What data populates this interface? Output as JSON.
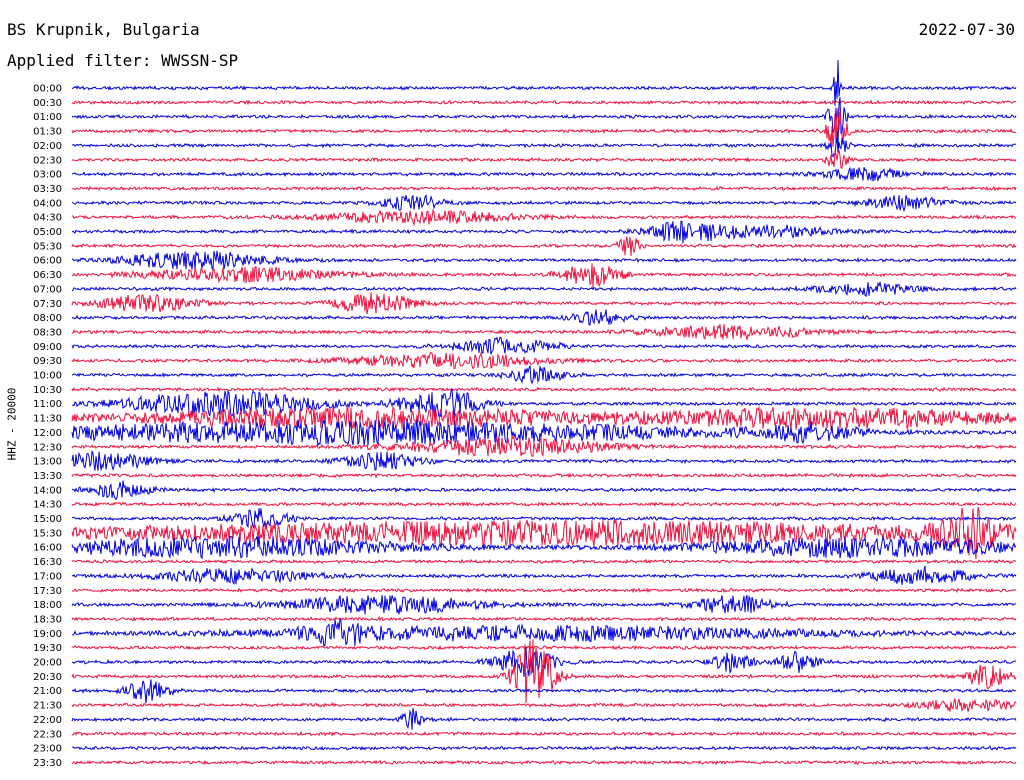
{
  "header": {
    "station": "BS Krupnik, Bulgaria",
    "date": "2022-07-30",
    "filter": "Applied filter: WWSSN-SP"
  },
  "chart_data": {
    "type": "line",
    "title": "BS Krupnik, Bulgaria",
    "ylabel": "HHZ - 20000",
    "colors": {
      "even": "#0000e0",
      "odd": "#f0103c"
    },
    "grid": false,
    "time_labels": [
      "00:00",
      "00:30",
      "01:00",
      "01:30",
      "02:00",
      "02:30",
      "03:00",
      "03:30",
      "04:00",
      "04:30",
      "05:00",
      "05:30",
      "06:00",
      "06:30",
      "07:00",
      "07:30",
      "08:00",
      "08:30",
      "09:00",
      "09:30",
      "10:00",
      "10:30",
      "11:00",
      "11:30",
      "12:00",
      "12:30",
      "13:00",
      "13:30",
      "14:00",
      "14:30",
      "15:00",
      "15:30",
      "16:00",
      "16:30",
      "17:00",
      "17:30",
      "18:00",
      "18:30",
      "19:00",
      "19:30",
      "20:00",
      "20:30",
      "21:00",
      "21:30",
      "22:00",
      "22:30",
      "23:00",
      "23:30"
    ],
    "events": [
      {
        "row": 0,
        "pos": 0.81,
        "amp": 40,
        "width": 0.003
      },
      {
        "row": 2,
        "pos": 0.81,
        "amp": 30,
        "width": 0.008
      },
      {
        "row": 3,
        "pos": 0.81,
        "amp": 22,
        "width": 0.01
      },
      {
        "row": 4,
        "pos": 0.81,
        "amp": 14,
        "width": 0.01
      },
      {
        "row": 5,
        "pos": 0.81,
        "amp": 12,
        "width": 0.01
      },
      {
        "row": 6,
        "pos": 0.84,
        "amp": 6,
        "width": 0.04
      },
      {
        "row": 8,
        "pos": 0.36,
        "amp": 8,
        "width": 0.03
      },
      {
        "row": 8,
        "pos": 0.88,
        "amp": 7,
        "width": 0.04
      },
      {
        "row": 9,
        "pos": 0.37,
        "amp": 6,
        "width": 0.1
      },
      {
        "row": 10,
        "pos": 0.65,
        "amp": 10,
        "width": 0.04
      },
      {
        "row": 10,
        "pos": 0.74,
        "amp": 6,
        "width": 0.06
      },
      {
        "row": 11,
        "pos": 0.59,
        "amp": 12,
        "width": 0.01
      },
      {
        "row": 12,
        "pos": 0.13,
        "amp": 9,
        "width": 0.07
      },
      {
        "row": 13,
        "pos": 0.18,
        "amp": 7,
        "width": 0.1
      },
      {
        "row": 13,
        "pos": 0.55,
        "amp": 12,
        "width": 0.03
      },
      {
        "row": 14,
        "pos": 0.84,
        "amp": 6,
        "width": 0.05
      },
      {
        "row": 15,
        "pos": 0.08,
        "amp": 8,
        "width": 0.05
      },
      {
        "row": 15,
        "pos": 0.32,
        "amp": 10,
        "width": 0.04
      },
      {
        "row": 16,
        "pos": 0.56,
        "amp": 7,
        "width": 0.03
      },
      {
        "row": 17,
        "pos": 0.7,
        "amp": 7,
        "width": 0.08
      },
      {
        "row": 18,
        "pos": 0.46,
        "amp": 8,
        "width": 0.05
      },
      {
        "row": 19,
        "pos": 0.4,
        "amp": 7,
        "width": 0.1
      },
      {
        "row": 20,
        "pos": 0.49,
        "amp": 8,
        "width": 0.03
      },
      {
        "row": 22,
        "pos": 0.16,
        "amp": 12,
        "width": 0.1
      },
      {
        "row": 22,
        "pos": 0.39,
        "amp": 16,
        "width": 0.04
      },
      {
        "row": 23,
        "pos": 0.3,
        "amp": 10,
        "width": 0.25
      },
      {
        "row": 23,
        "pos": 0.8,
        "amp": 10,
        "width": 0.2
      },
      {
        "row": 24,
        "pos": 0.3,
        "amp": 12,
        "width": 0.35
      },
      {
        "row": 24,
        "pos": 0.78,
        "amp": 8,
        "width": 0.05
      },
      {
        "row": 25,
        "pos": 0.46,
        "amp": 9,
        "width": 0.1
      },
      {
        "row": 26,
        "pos": 0.03,
        "amp": 9,
        "width": 0.05
      },
      {
        "row": 26,
        "pos": 0.33,
        "amp": 8,
        "width": 0.04
      },
      {
        "row": 28,
        "pos": 0.05,
        "amp": 8,
        "width": 0.03
      },
      {
        "row": 30,
        "pos": 0.2,
        "amp": 9,
        "width": 0.03
      },
      {
        "row": 31,
        "pos": 0.5,
        "amp": 12,
        "width": 0.5
      },
      {
        "row": 31,
        "pos": 0.95,
        "amp": 22,
        "width": 0.03
      },
      {
        "row": 32,
        "pos": 0.16,
        "amp": 10,
        "width": 0.2
      },
      {
        "row": 32,
        "pos": 0.84,
        "amp": 10,
        "width": 0.18
      },
      {
        "row": 34,
        "pos": 0.17,
        "amp": 7,
        "width": 0.08
      },
      {
        "row": 34,
        "pos": 0.9,
        "amp": 9,
        "width": 0.05
      },
      {
        "row": 36,
        "pos": 0.33,
        "amp": 9,
        "width": 0.1
      },
      {
        "row": 36,
        "pos": 0.7,
        "amp": 9,
        "width": 0.04
      },
      {
        "row": 38,
        "pos": 0.28,
        "amp": 10,
        "width": 0.03
      },
      {
        "row": 38,
        "pos": 0.5,
        "amp": 7,
        "width": 0.3
      },
      {
        "row": 40,
        "pos": 0.48,
        "amp": 14,
        "width": 0.03
      },
      {
        "row": 40,
        "pos": 0.7,
        "amp": 10,
        "width": 0.02
      },
      {
        "row": 40,
        "pos": 0.77,
        "amp": 10,
        "width": 0.02
      },
      {
        "row": 41,
        "pos": 0.49,
        "amp": 40,
        "width": 0.02
      },
      {
        "row": 41,
        "pos": 0.97,
        "amp": 12,
        "width": 0.02
      },
      {
        "row": 42,
        "pos": 0.08,
        "amp": 12,
        "width": 0.02
      },
      {
        "row": 43,
        "pos": 0.95,
        "amp": 6,
        "width": 0.05
      },
      {
        "row": 44,
        "pos": 0.36,
        "amp": 10,
        "width": 0.01
      }
    ]
  }
}
